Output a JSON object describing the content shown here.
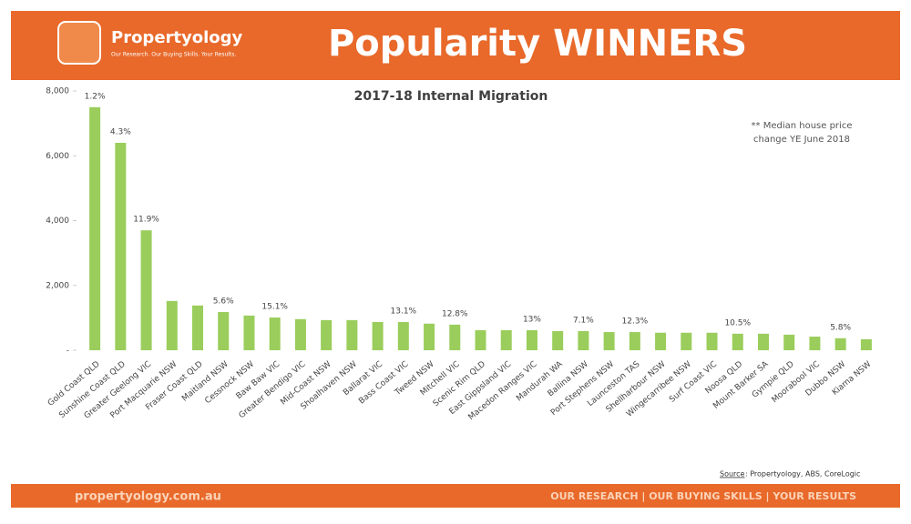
{
  "header": {
    "brand": "Propertyology",
    "tagline": "Our Research. Our Buying Skills. Your Results.",
    "title": "Popularity WINNERS"
  },
  "note": [
    "** Median house price",
    "change YE June 2018"
  ],
  "source": {
    "label": "Source",
    "text": ": Propertyology, ABS, CoreLogic"
  },
  "footer": {
    "site": "propertyology.com.au",
    "motto": "OUR RESEARCH | OUR BUYING SKILLS | YOUR RESULTS"
  },
  "chart_data": {
    "type": "bar",
    "title": "2017-18 Internal Migration",
    "categories": [
      "Gold Coast QLD",
      "Sunshine Coast QLD",
      "Greater Geelong VIC",
      "Port Macquarie NSW",
      "Fraser Coast QLD",
      "Maitland NSW",
      "Cessnock NSW",
      "Baw Baw VIC",
      "Greater Bendigo VIC",
      "Mid-Coast NSW",
      "Shoalhaven NSW",
      "Ballarat VIC",
      "Bass Coast VIC",
      "Tweed NSW",
      "Mitchell VIC",
      "Scenic Rim QLD",
      "East Gippsland VIC",
      "Macedon Ranges VIC",
      "Mandurah WA",
      "Ballina NSW",
      "Port Stephens NSW",
      "Launceston TAS",
      "Shellharbour NSW",
      "Wingecarribee NSW",
      "Surf Coast VIC",
      "Noosa QLD",
      "Mount Barker SA",
      "Gympie QLD",
      "Moorabool VIC",
      "Dubbo NSW",
      "Kiama NSW"
    ],
    "values": [
      7500,
      6400,
      3700,
      1520,
      1380,
      1180,
      1070,
      1010,
      960,
      930,
      930,
      870,
      870,
      820,
      790,
      620,
      620,
      620,
      590,
      590,
      560,
      560,
      540,
      540,
      540,
      510,
      510,
      480,
      420,
      370,
      340
    ],
    "color": "#9acd5b",
    "ylim": [
      0,
      8000
    ],
    "yticks": [
      {
        "value": 0,
        "label": "-"
      },
      {
        "value": 2000,
        "label": "2,000"
      },
      {
        "value": 4000,
        "label": "4,000"
      },
      {
        "value": 6000,
        "label": "6,000"
      },
      {
        "value": 8000,
        "label": "8,000"
      }
    ],
    "grid": false,
    "annotations": [
      {
        "category": "Gold Coast QLD",
        "text": "1.2%"
      },
      {
        "category": "Sunshine Coast QLD",
        "text": "4.3%"
      },
      {
        "category": "Greater Geelong VIC",
        "text": "11.9%"
      },
      {
        "category": "Maitland NSW",
        "text": "5.6%"
      },
      {
        "category": "Baw Baw VIC",
        "text": "15.1%"
      },
      {
        "category": "Bass Coast VIC",
        "text": "13.1%"
      },
      {
        "category": "Mitchell VIC",
        "text": "12.8%"
      },
      {
        "category": "Macedon Ranges VIC",
        "text": "13%"
      },
      {
        "category": "Ballina NSW",
        "text": "7.1%"
      },
      {
        "category": "Launceston TAS",
        "text": "12.3%"
      },
      {
        "category": "Noosa QLD",
        "text": "10.5%"
      },
      {
        "category": "Dubbo NSW",
        "text": "5.8%"
      }
    ]
  }
}
